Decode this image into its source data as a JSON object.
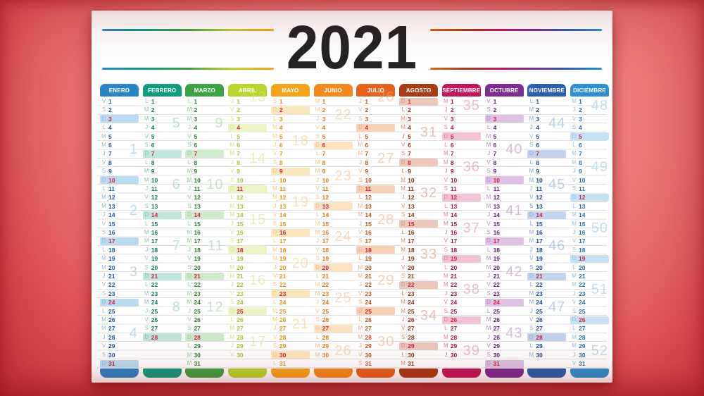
{
  "title": "2021",
  "background": {
    "center": "#f7a29b",
    "edge": "#ba2e37",
    "sheet": "#ffffff",
    "grid_line": "#e0e0e0",
    "title_color": "#242424"
  },
  "header": {
    "left_line_gradient": [
      "#2b84c6",
      "#109c80",
      "#3da244",
      "#b9d52f",
      "#f4a41c"
    ],
    "right_line_gradient": [
      "#e4641d",
      "#a83c16",
      "#c3175c",
      "#7e2d90",
      "#2b5fae",
      "#2e90d1"
    ]
  },
  "day_letters": [
    "L",
    "M",
    "M",
    "J",
    "V",
    "S",
    "D"
  ],
  "sunday_number_color": "#d22442",
  "months": [
    {
      "name": "ENERO",
      "days": 31,
      "first_dow": 4,
      "tab": "#2b84c6",
      "num": "#1d5796",
      "letter": "#93b9da",
      "band": "#badbf0",
      "weeks": [
        {
          "n": 1,
          "at": 7
        },
        {
          "n": 2,
          "at": 14
        },
        {
          "n": 3,
          "at": 21
        },
        {
          "n": 4,
          "at": 28
        }
      ]
    },
    {
      "name": "FEBRERO",
      "days": 28,
      "first_dow": 0,
      "tab": "#109c80",
      "num": "#0c7b65",
      "letter": "#84c6b6",
      "band": "#bfe5dc",
      "weeks": [
        {
          "n": 5,
          "at": 4
        },
        {
          "n": 6,
          "at": 11
        },
        {
          "n": 7,
          "at": 18
        },
        {
          "n": 8,
          "at": 25
        }
      ]
    },
    {
      "name": "MARZO",
      "days": 31,
      "first_dow": 0,
      "tab": "#3da244",
      "num": "#2f7d33",
      "letter": "#95cb95",
      "band": "#cfe9cd",
      "weeks": [
        {
          "n": 9,
          "at": 4
        },
        {
          "n": 10,
          "at": 11
        },
        {
          "n": 11,
          "at": 18
        },
        {
          "n": 12,
          "at": 25
        }
      ]
    },
    {
      "name": "ABRIL",
      "days": 30,
      "first_dow": 3,
      "tab": "#b9d52f",
      "num": "#a9c42c",
      "letter": "#d3e387",
      "band": "#ecf4c5",
      "weeks": [
        {
          "n": 13,
          "at": 1
        },
        {
          "n": 14,
          "at": 8
        },
        {
          "n": 15,
          "at": 15
        },
        {
          "n": 16,
          "at": 22
        },
        {
          "n": 17,
          "at": 29
        }
      ]
    },
    {
      "name": "MAYO",
      "days": 31,
      "first_dow": 5,
      "tab": "#f4a41c",
      "num": "#de9415",
      "letter": "#f4c97e",
      "band": "#fbe7bd",
      "weeks": [
        {
          "n": 18,
          "at": 6
        },
        {
          "n": 19,
          "at": 13
        },
        {
          "n": 20,
          "at": 20
        },
        {
          "n": 21,
          "at": 27
        }
      ]
    },
    {
      "name": "JUNIO",
      "days": 30,
      "first_dow": 1,
      "tab": "#f28a1e",
      "num": "#e07a18",
      "letter": "#f6bd83",
      "band": "#fce3c2",
      "weeks": [
        {
          "n": 22,
          "at": 3
        },
        {
          "n": 23,
          "at": 10
        },
        {
          "n": 24,
          "at": 17
        },
        {
          "n": 25,
          "at": 24
        },
        {
          "n": 26,
          "at": 30
        }
      ]
    },
    {
      "name": "JULIO",
      "days": 31,
      "first_dow": 3,
      "tab": "#e4641d",
      "num": "#bf5418",
      "letter": "#efaa7d",
      "band": "#f8d0b6",
      "weeks": [
        {
          "n": 26,
          "at": 1
        },
        {
          "n": 27,
          "at": 8
        },
        {
          "n": 28,
          "at": 15
        },
        {
          "n": 29,
          "at": 22
        },
        {
          "n": 30,
          "at": 29
        }
      ]
    },
    {
      "name": "AGOSTO",
      "days": 31,
      "first_dow": 6,
      "tab": "#a83c16",
      "num": "#8f3312",
      "letter": "#cf9078",
      "band": "#ecc8bb",
      "weeks": [
        {
          "n": 31,
          "at": 5
        },
        {
          "n": 32,
          "at": 12
        },
        {
          "n": 33,
          "at": 19
        },
        {
          "n": 34,
          "at": 26
        }
      ]
    },
    {
      "name": "SEPTIEMBRE",
      "days": 30,
      "first_dow": 2,
      "tab": "#c3175c",
      "num": "#a6114d",
      "letter": "#e084a8",
      "band": "#f0c3d6",
      "weeks": [
        {
          "n": 35,
          "at": 2
        },
        {
          "n": 36,
          "at": 9
        },
        {
          "n": 37,
          "at": 16
        },
        {
          "n": 38,
          "at": 23
        },
        {
          "n": 39,
          "at": 30
        }
      ]
    },
    {
      "name": "OCTUBRE",
      "days": 31,
      "first_dow": 4,
      "tab": "#7e2d90",
      "num": "#662378",
      "letter": "#b58ac2",
      "band": "#ddc2e3",
      "weeks": [
        {
          "n": 40,
          "at": 7
        },
        {
          "n": 41,
          "at": 14
        },
        {
          "n": 42,
          "at": 21
        },
        {
          "n": 43,
          "at": 28
        }
      ]
    },
    {
      "name": "NOVIEMBRE",
      "days": 30,
      "first_dow": 0,
      "tab": "#2b5fae",
      "num": "#1e4b90",
      "letter": "#8aa6d4",
      "band": "#c3d3eb",
      "weeks": [
        {
          "n": 44,
          "at": 4
        },
        {
          "n": 45,
          "at": 11
        },
        {
          "n": 46,
          "at": 18
        },
        {
          "n": 47,
          "at": 25
        }
      ]
    },
    {
      "name": "DICIEMBRE",
      "days": 31,
      "first_dow": 2,
      "tab": "#2e90d1",
      "num": "#2371ae",
      "letter": "#8fc2e5",
      "band": "#c6e1f4",
      "weeks": [
        {
          "n": 48,
          "at": 2
        },
        {
          "n": 49,
          "at": 9
        },
        {
          "n": 50,
          "at": 16
        },
        {
          "n": 51,
          "at": 23
        },
        {
          "n": 52,
          "at": 30
        }
      ]
    }
  ]
}
